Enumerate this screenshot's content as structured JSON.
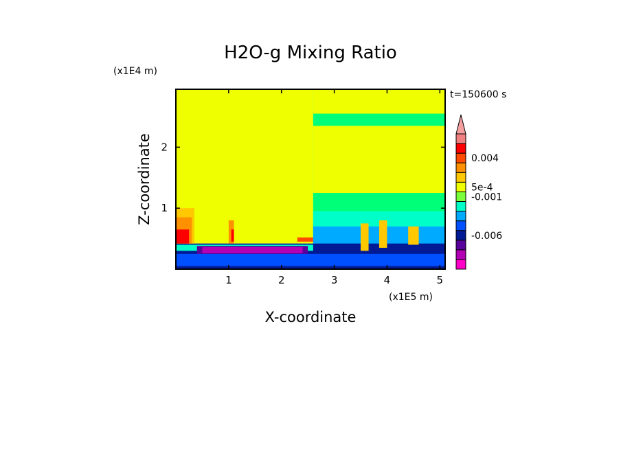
{
  "chart_data": {
    "type": "heatmap",
    "title": "H2O-g Mixing Ratio",
    "xlabel": "X-coordinate",
    "ylabel": "Z-coordinate",
    "x_scale_label": "(x1E5 m)",
    "y_scale_label": "(x1E4 m)",
    "time_label": "t=150600 s",
    "xlim": [
      0,
      5.1
    ],
    "ylim": [
      0,
      2.95
    ],
    "x_ticks": [
      "1",
      "2",
      "3",
      "4",
      "5"
    ],
    "x_tick_values": [
      1,
      2,
      3,
      4,
      5
    ],
    "y_ticks": [
      "1",
      "2"
    ],
    "y_tick_values": [
      1,
      2
    ],
    "colorbar": {
      "colors": [
        "#ff00c8",
        "#b400b4",
        "#5a009c",
        "#001a96",
        "#0050ff",
        "#00aaff",
        "#00ffc8",
        "#7aff3a",
        "#f0ff00",
        "#ffc800",
        "#ff9000",
        "#ff4a00",
        "#ff0000",
        "#f08080"
      ],
      "extend_color": "#f4a0a0",
      "labels": [
        "0.004",
        "5e-4",
        "-0.001",
        "-0.006"
      ],
      "label_levels": [
        11.5,
        8.5,
        7.5,
        3.5
      ]
    },
    "regions": [
      {
        "color": "#f0ff00",
        "x": [
          0,
          2.6
        ],
        "z": [
          0.42,
          2.95
        ]
      },
      {
        "color": "#00ff78",
        "x": [
          2.6,
          5.1
        ],
        "z": [
          0.42,
          2.95
        ]
      },
      {
        "color": "#f0ff00",
        "x": [
          2.6,
          5.1
        ],
        "z": [
          1.25,
          2.35
        ]
      },
      {
        "color": "#f0ff00",
        "x": [
          2.6,
          5.1
        ],
        "z": [
          2.55,
          2.95
        ]
      },
      {
        "color": "#00ffc8",
        "x": [
          2.6,
          5.1
        ],
        "z": [
          0.2,
          0.95
        ]
      },
      {
        "color": "#00aaff",
        "x": [
          2.6,
          5.1
        ],
        "z": [
          0.12,
          0.7
        ]
      },
      {
        "color": "#001a96",
        "x": [
          0,
          5.1
        ],
        "z": [
          0,
          0.42
        ]
      },
      {
        "color": "#0050ff",
        "x": [
          0,
          5.1
        ],
        "z": [
          0.05,
          0.25
        ]
      },
      {
        "color": "#00ffc8",
        "x": [
          0,
          2.6
        ],
        "z": [
          0.3,
          0.4
        ]
      },
      {
        "color": "#5a009c",
        "x": [
          0.4,
          2.5
        ],
        "z": [
          0.25,
          0.38
        ]
      },
      {
        "color": "#b400b4",
        "x": [
          0.5,
          2.4
        ],
        "z": [
          0.26,
          0.36
        ]
      },
      {
        "color": "#ffc800",
        "x": [
          0,
          0.35
        ],
        "z": [
          0.42,
          1.0
        ]
      },
      {
        "color": "#ff9000",
        "x": [
          0,
          0.3
        ],
        "z": [
          0.42,
          0.85
        ]
      },
      {
        "color": "#ff0000",
        "x": [
          0,
          0.25
        ],
        "z": [
          0.42,
          0.65
        ]
      },
      {
        "color": "#ff9000",
        "x": [
          1.0,
          1.1
        ],
        "z": [
          0.42,
          0.8
        ]
      },
      {
        "color": "#ff0000",
        "x": [
          1.05,
          1.1
        ],
        "z": [
          0.45,
          0.65
        ]
      },
      {
        "color": "#ff4a00",
        "x": [
          2.3,
          2.6
        ],
        "z": [
          0.45,
          0.52
        ]
      },
      {
        "color": "#ffc800",
        "x": [
          3.5,
          3.65
        ],
        "z": [
          0.3,
          0.75
        ]
      },
      {
        "color": "#ffc800",
        "x": [
          3.85,
          4.0
        ],
        "z": [
          0.35,
          0.8
        ]
      },
      {
        "color": "#ffc800",
        "x": [
          4.4,
          4.6
        ],
        "z": [
          0.4,
          0.7
        ]
      }
    ]
  }
}
